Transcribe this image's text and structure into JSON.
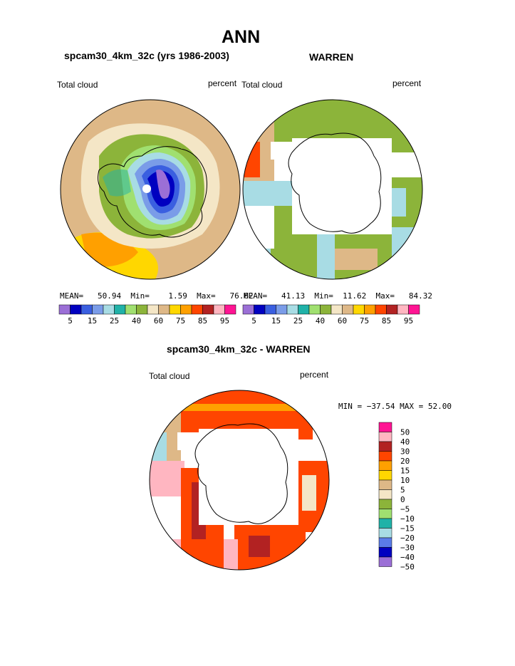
{
  "page": {
    "title": "ANN"
  },
  "panel_left": {
    "header": "spcam30_4km_32c (yrs 1986-2003)",
    "label_left": "Total cloud",
    "label_right": "percent",
    "stats": {
      "mean_label": "MEAN=",
      "mean": "50.94",
      "min_label": "Min=",
      "min": "1.59",
      "max_label": "Max=",
      "max": "76.62"
    }
  },
  "panel_right": {
    "header": "WARREN",
    "label_left": "Total cloud",
    "label_right": "percent",
    "stats": {
      "mean_label": "MEAN=",
      "mean": "41.13",
      "min_label": "Min=",
      "min": "11.62",
      "max_label": "Max=",
      "max": "84.32"
    }
  },
  "panel_diff": {
    "header": "spcam30_4km_32c - WARREN",
    "label_left": "Total cloud",
    "label_right": "percent",
    "minmax": "MIN = −37.54 MAX =  52.00"
  },
  "colorbar_abs": {
    "colors": [
      "#9b6fd6",
      "#0000c0",
      "#3a5fe0",
      "#7a9ce8",
      "#a8dce4",
      "#20b2a8",
      "#a0e070",
      "#8cb43a",
      "#f4e6c6",
      "#deb887",
      "#ffd700",
      "#ffa000",
      "#ff4500",
      "#b22222",
      "#ffb6c1",
      "#ff1493"
    ],
    "labels": [
      "5",
      "15",
      "25",
      "40",
      "60",
      "75",
      "85",
      "95"
    ]
  },
  "colorbar_diff": {
    "colors": [
      "#ff1493",
      "#ffb6c1",
      "#b22222",
      "#ff4500",
      "#ffa000",
      "#ffd700",
      "#deb887",
      "#f4e6c6",
      "#8cb43a",
      "#a0e070",
      "#20b2a8",
      "#a8dce4",
      "#5a7ce8",
      "#0000c0",
      "#9b6fd6"
    ],
    "labels": [
      "50",
      "40",
      "30",
      "20",
      "15",
      "10",
      "5",
      "0",
      "−5",
      "−10",
      "−15",
      "−20",
      "−30",
      "−40",
      "−50"
    ]
  }
}
